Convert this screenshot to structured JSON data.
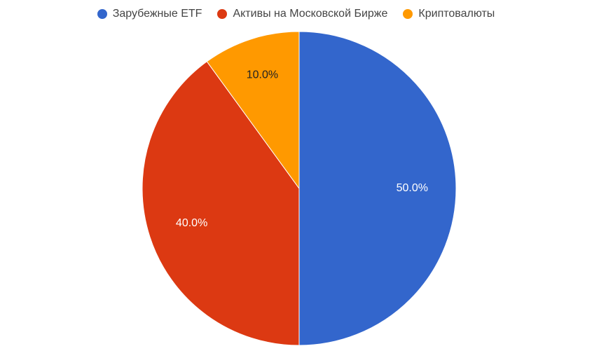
{
  "chart_data": {
    "type": "pie",
    "categories": [
      "Зарубежные ETF",
      "Активы на Московской Бирже",
      "Криптовалюты"
    ],
    "values": [
      50.0,
      40.0,
      10.0
    ],
    "labels": [
      "50.0%",
      "40.0%",
      "10.0%"
    ],
    "colors": [
      "#3366cc",
      "#dc3912",
      "#ff9900"
    ],
    "label_colors": [
      "#ffffff",
      "#ffffff",
      "#222222"
    ],
    "legend_position": "top",
    "start_angle_deg": 0,
    "direction": "clockwise"
  }
}
